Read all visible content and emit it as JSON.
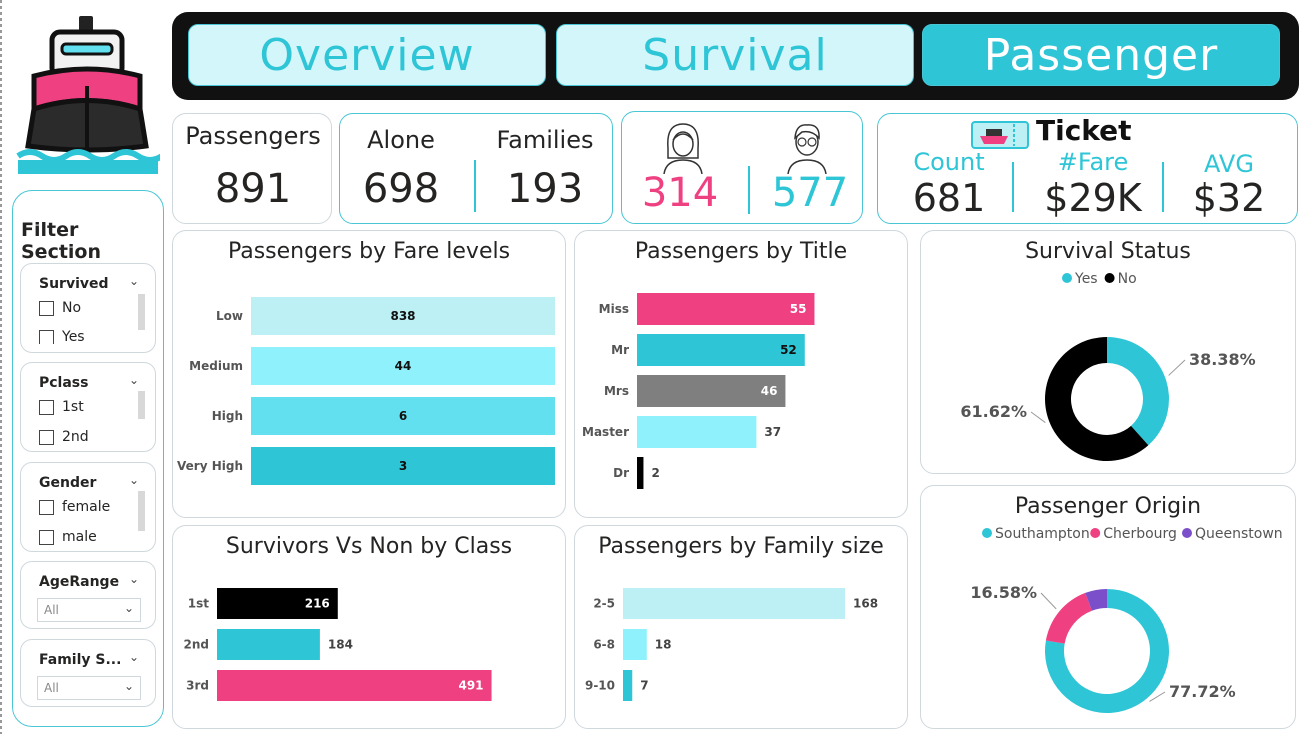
{
  "nav": {
    "tabs": [
      {
        "label": "Overview",
        "active": false
      },
      {
        "label": "Survival",
        "active": false
      },
      {
        "label": "Passenger",
        "active": true
      }
    ]
  },
  "kpis": {
    "passengers": {
      "label": "Passengers",
      "value": "891"
    },
    "alone": {
      "label": "Alone",
      "value": "698"
    },
    "families": {
      "label": "Families",
      "value": "193"
    },
    "female": {
      "value": "314",
      "color": "#ef4082",
      "icon": "woman-avatar-icon"
    },
    "male": {
      "value": "577",
      "color": "#2ec5d6",
      "icon": "man-avatar-icon"
    },
    "ticket": {
      "title": "Ticket",
      "icon": "ship-ticket-icon",
      "count_label": "Count",
      "count_value": "681",
      "fare_label": "#Fare",
      "fare_value": "$29K",
      "avg_label": "AVG",
      "avg_value": "$32"
    }
  },
  "filters": {
    "title": "Filter Section",
    "survived": {
      "title": "Survived",
      "options": [
        "No",
        "Yes"
      ]
    },
    "pclass": {
      "title": "Pclass",
      "options": [
        "1st",
        "2nd"
      ]
    },
    "gender": {
      "title": "Gender",
      "options": [
        "female",
        "male"
      ]
    },
    "agerange": {
      "title": "AgeRange",
      "value": "All"
    },
    "familysize": {
      "title": "Family S...",
      "value": "All"
    }
  },
  "colors": {
    "accent": "#2ec5d6",
    "pink": "#ef4082",
    "dark": "#000000",
    "gray": "#7f7f7f",
    "light1": "#bdf0f5",
    "light2": "#8ff1fb",
    "light3": "#63e0f0"
  },
  "chart_data": [
    {
      "id": "fare",
      "type": "bar",
      "orientation": "horizontal",
      "title": "Passengers by Fare levels",
      "categories": [
        "Low",
        "Medium",
        "High",
        "Very High"
      ],
      "values": [
        838,
        44,
        6,
        3
      ],
      "colors": [
        "#bdf0f5",
        "#8ff1fb",
        "#63e0f0",
        "#2ec5d6"
      ],
      "note": "bars shown equal width"
    },
    {
      "id": "title",
      "type": "bar",
      "orientation": "horizontal",
      "title": "Passengers by Title",
      "categories": [
        "Miss",
        "Mr",
        "Mrs",
        "Master",
        "Dr"
      ],
      "values": [
        55,
        52,
        46,
        37,
        2
      ],
      "colors": [
        "#ef4082",
        "#2ec5d6",
        "#7f7f7f",
        "#8ff1fb",
        "#000000"
      ],
      "xlim": [
        0,
        60
      ]
    },
    {
      "id": "survival_status",
      "type": "pie",
      "title": "Survival Status",
      "legend": [
        "Yes",
        "No"
      ],
      "values": [
        38.38,
        61.62
      ],
      "labels": [
        "38.38%",
        "61.62%"
      ],
      "colors": [
        "#2ec5d6",
        "#000000"
      ]
    },
    {
      "id": "class",
      "type": "bar",
      "orientation": "horizontal",
      "title": "Survivors Vs Non by Class",
      "categories": [
        "1st",
        "2nd",
        "3rd"
      ],
      "values": [
        216,
        184,
        491
      ],
      "colors": [
        "#000000",
        "#2ec5d6",
        "#ef4082"
      ],
      "xlim": [
        0,
        560
      ]
    },
    {
      "id": "family",
      "type": "bar",
      "orientation": "horizontal",
      "title": "Passengers by Family size",
      "categories": [
        "2-5",
        "6-8",
        "9-10"
      ],
      "values": [
        168,
        18,
        7
      ],
      "colors": [
        "#bdf0f5",
        "#8ff1fb",
        "#2ec5d6"
      ],
      "xlim": [
        0,
        185
      ]
    },
    {
      "id": "origin",
      "type": "pie",
      "title": "Passenger Origin",
      "legend": [
        "Southampton",
        "Cherbourg",
        "Queenstown"
      ],
      "values": [
        77.72,
        16.58,
        5.7
      ],
      "labels": [
        "77.72%",
        "16.58%",
        ""
      ],
      "colors": [
        "#2ec5d6",
        "#ef4082",
        "#7b4fc9"
      ]
    }
  ]
}
